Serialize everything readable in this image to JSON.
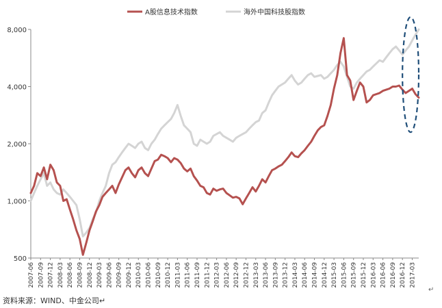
{
  "chart_data": {
    "type": "line",
    "title": "",
    "xlabel": "",
    "ylabel": "",
    "y_scale": "log",
    "ylim": [
      500,
      8000
    ],
    "yticks": [
      500,
      1000,
      2000,
      4000,
      8000
    ],
    "ytick_labels": [
      "500",
      "1,000",
      "2,000",
      "4,000",
      "8,000"
    ],
    "xlim": [
      "2007-06",
      "2017-05"
    ],
    "xtick_labels": [
      "2007-06",
      "2007-09",
      "2007-12",
      "2008-03",
      "2008-06",
      "2008-09",
      "2008-12",
      "2009-03",
      "2009-06",
      "2009-09",
      "2009-12",
      "2010-03",
      "2010-06",
      "2010-09",
      "2010-12",
      "2011-03",
      "2011-06",
      "2011-09",
      "2011-12",
      "2012-03",
      "2012-06",
      "2012-09",
      "2012-12",
      "2013-03",
      "2013-06",
      "2013-09",
      "2013-12",
      "2014-03",
      "2014-06",
      "2014-09",
      "2014-12",
      "2015-03",
      "2015-06",
      "2015-09",
      "2015-12",
      "2016-03",
      "2016-06",
      "2016-09",
      "2016-12",
      "2017-03"
    ],
    "grid": false,
    "legend_position": "top",
    "series": [
      {
        "name": "A股信息技术指数",
        "color": "#B5514F",
        "points": [
          [
            "2007-06",
            1100
          ],
          [
            "2007-07",
            1200
          ],
          [
            "2007-08",
            1400
          ],
          [
            "2007-09",
            1350
          ],
          [
            "2007-10",
            1500
          ],
          [
            "2007-11",
            1300
          ],
          [
            "2007-12",
            1550
          ],
          [
            "2008-01",
            1450
          ],
          [
            "2008-02",
            1250
          ],
          [
            "2008-03",
            1200
          ],
          [
            "2008-04",
            1000
          ],
          [
            "2008-05",
            1020
          ],
          [
            "2008-06",
            900
          ],
          [
            "2008-07",
            800
          ],
          [
            "2008-08",
            700
          ],
          [
            "2008-09",
            630
          ],
          [
            "2008-10",
            520
          ],
          [
            "2008-11",
            600
          ],
          [
            "2008-12",
            700
          ],
          [
            "2009-01",
            780
          ],
          [
            "2009-02",
            880
          ],
          [
            "2009-03",
            950
          ],
          [
            "2009-04",
            1050
          ],
          [
            "2009-05",
            1100
          ],
          [
            "2009-06",
            1150
          ],
          [
            "2009-07",
            1200
          ],
          [
            "2009-08",
            1100
          ],
          [
            "2009-09",
            1220
          ],
          [
            "2009-10",
            1330
          ],
          [
            "2009-11",
            1450
          ],
          [
            "2009-12",
            1500
          ],
          [
            "2010-01",
            1400
          ],
          [
            "2010-02",
            1330
          ],
          [
            "2010-03",
            1450
          ],
          [
            "2010-04",
            1500
          ],
          [
            "2010-05",
            1400
          ],
          [
            "2010-06",
            1350
          ],
          [
            "2010-07",
            1480
          ],
          [
            "2010-08",
            1620
          ],
          [
            "2010-09",
            1650
          ],
          [
            "2010-10",
            1750
          ],
          [
            "2010-11",
            1720
          ],
          [
            "2010-12",
            1680
          ],
          [
            "2011-01",
            1600
          ],
          [
            "2011-02",
            1680
          ],
          [
            "2011-03",
            1650
          ],
          [
            "2011-04",
            1580
          ],
          [
            "2011-05",
            1480
          ],
          [
            "2011-06",
            1430
          ],
          [
            "2011-07",
            1480
          ],
          [
            "2011-08",
            1350
          ],
          [
            "2011-09",
            1280
          ],
          [
            "2011-10",
            1200
          ],
          [
            "2011-11",
            1180
          ],
          [
            "2011-12",
            1100
          ],
          [
            "2012-01",
            1080
          ],
          [
            "2012-02",
            1160
          ],
          [
            "2012-03",
            1130
          ],
          [
            "2012-04",
            1150
          ],
          [
            "2012-05",
            1160
          ],
          [
            "2012-06",
            1100
          ],
          [
            "2012-07",
            1070
          ],
          [
            "2012-08",
            1040
          ],
          [
            "2012-09",
            1050
          ],
          [
            "2012-10",
            1030
          ],
          [
            "2012-11",
            960
          ],
          [
            "2012-12",
            1030
          ],
          [
            "2013-01",
            1100
          ],
          [
            "2013-02",
            1180
          ],
          [
            "2013-03",
            1120
          ],
          [
            "2013-04",
            1200
          ],
          [
            "2013-05",
            1300
          ],
          [
            "2013-06",
            1250
          ],
          [
            "2013-07",
            1350
          ],
          [
            "2013-08",
            1450
          ],
          [
            "2013-09",
            1480
          ],
          [
            "2013-10",
            1520
          ],
          [
            "2013-11",
            1550
          ],
          [
            "2013-12",
            1620
          ],
          [
            "2014-01",
            1700
          ],
          [
            "2014-02",
            1800
          ],
          [
            "2014-03",
            1720
          ],
          [
            "2014-04",
            1700
          ],
          [
            "2014-05",
            1780
          ],
          [
            "2014-06",
            1850
          ],
          [
            "2014-07",
            1950
          ],
          [
            "2014-08",
            2050
          ],
          [
            "2014-09",
            2200
          ],
          [
            "2014-10",
            2350
          ],
          [
            "2014-11",
            2450
          ],
          [
            "2014-12",
            2500
          ],
          [
            "2015-01",
            2800
          ],
          [
            "2015-02",
            3200
          ],
          [
            "2015-03",
            3900
          ],
          [
            "2015-04",
            4600
          ],
          [
            "2015-05",
            6000
          ],
          [
            "2015-06",
            7200
          ],
          [
            "2015-07",
            4600
          ],
          [
            "2015-08",
            4300
          ],
          [
            "2015-09",
            3400
          ],
          [
            "2015-10",
            3800
          ],
          [
            "2015-11",
            4200
          ],
          [
            "2015-12",
            4000
          ],
          [
            "2016-01",
            3300
          ],
          [
            "2016-02",
            3400
          ],
          [
            "2016-03",
            3600
          ],
          [
            "2016-04",
            3650
          ],
          [
            "2016-05",
            3700
          ],
          [
            "2016-06",
            3800
          ],
          [
            "2016-07",
            3850
          ],
          [
            "2016-08",
            3900
          ],
          [
            "2016-09",
            4000
          ],
          [
            "2016-10",
            4000
          ],
          [
            "2016-11",
            4050
          ],
          [
            "2016-12",
            3850
          ],
          [
            "2017-01",
            3700
          ],
          [
            "2017-02",
            3800
          ],
          [
            "2017-03",
            3900
          ],
          [
            "2017-04",
            3650
          ],
          [
            "2017-05",
            3500
          ]
        ]
      },
      {
        "name": "海外中国科技股指数",
        "color": "#D4D4D4",
        "points": [
          [
            "2007-06",
            1000
          ],
          [
            "2007-07",
            1100
          ],
          [
            "2007-08",
            1200
          ],
          [
            "2007-09",
            1300
          ],
          [
            "2007-10",
            1400
          ],
          [
            "2007-11",
            1200
          ],
          [
            "2007-12",
            1250
          ],
          [
            "2008-01",
            1150
          ],
          [
            "2008-02",
            1100
          ],
          [
            "2008-03",
            1080
          ],
          [
            "2008-04",
            1150
          ],
          [
            "2008-05",
            1100
          ],
          [
            "2008-06",
            1050
          ],
          [
            "2008-07",
            1000
          ],
          [
            "2008-08",
            950
          ],
          [
            "2008-09",
            800
          ],
          [
            "2008-10",
            650
          ],
          [
            "2008-11",
            680
          ],
          [
            "2008-12",
            720
          ],
          [
            "2009-01",
            800
          ],
          [
            "2009-02",
            870
          ],
          [
            "2009-03",
            1000
          ],
          [
            "2009-04",
            1100
          ],
          [
            "2009-05",
            1200
          ],
          [
            "2009-06",
            1400
          ],
          [
            "2009-07",
            1550
          ],
          [
            "2009-08",
            1600
          ],
          [
            "2009-09",
            1700
          ],
          [
            "2009-10",
            1800
          ],
          [
            "2009-11",
            1900
          ],
          [
            "2009-12",
            2000
          ],
          [
            "2010-01",
            1950
          ],
          [
            "2010-02",
            1900
          ],
          [
            "2010-03",
            2000
          ],
          [
            "2010-04",
            2050
          ],
          [
            "2010-05",
            1900
          ],
          [
            "2010-06",
            1850
          ],
          [
            "2010-07",
            2000
          ],
          [
            "2010-08",
            2100
          ],
          [
            "2010-09",
            2250
          ],
          [
            "2010-10",
            2400
          ],
          [
            "2010-11",
            2500
          ],
          [
            "2010-12",
            2600
          ],
          [
            "2011-01",
            2700
          ],
          [
            "2011-02",
            2900
          ],
          [
            "2011-03",
            3200
          ],
          [
            "2011-04",
            2800
          ],
          [
            "2011-05",
            2500
          ],
          [
            "2011-06",
            2400
          ],
          [
            "2011-07",
            2300
          ],
          [
            "2011-08",
            2000
          ],
          [
            "2011-09",
            1950
          ],
          [
            "2011-10",
            2100
          ],
          [
            "2011-11",
            2050
          ],
          [
            "2011-12",
            2000
          ],
          [
            "2012-01",
            2050
          ],
          [
            "2012-02",
            2200
          ],
          [
            "2012-03",
            2250
          ],
          [
            "2012-04",
            2300
          ],
          [
            "2012-05",
            2200
          ],
          [
            "2012-06",
            2150
          ],
          [
            "2012-07",
            2100
          ],
          [
            "2012-08",
            2050
          ],
          [
            "2012-09",
            2150
          ],
          [
            "2012-10",
            2200
          ],
          [
            "2012-11",
            2250
          ],
          [
            "2012-12",
            2300
          ],
          [
            "2013-01",
            2400
          ],
          [
            "2013-02",
            2500
          ],
          [
            "2013-03",
            2600
          ],
          [
            "2013-04",
            2650
          ],
          [
            "2013-05",
            2900
          ],
          [
            "2013-06",
            3000
          ],
          [
            "2013-07",
            3300
          ],
          [
            "2013-08",
            3600
          ],
          [
            "2013-09",
            3800
          ],
          [
            "2013-10",
            4000
          ],
          [
            "2013-11",
            4100
          ],
          [
            "2013-12",
            4200
          ],
          [
            "2014-01",
            4400
          ],
          [
            "2014-02",
            4600
          ],
          [
            "2014-03",
            4300
          ],
          [
            "2014-04",
            4100
          ],
          [
            "2014-05",
            4200
          ],
          [
            "2014-06",
            4400
          ],
          [
            "2014-07",
            4600
          ],
          [
            "2014-08",
            4700
          ],
          [
            "2014-09",
            4500
          ],
          [
            "2014-10",
            4550
          ],
          [
            "2014-11",
            4600
          ],
          [
            "2014-12",
            4400
          ],
          [
            "2015-01",
            4500
          ],
          [
            "2015-02",
            4700
          ],
          [
            "2015-03",
            4900
          ],
          [
            "2015-04",
            5200
          ],
          [
            "2015-05",
            5400
          ],
          [
            "2015-06",
            5100
          ],
          [
            "2015-07",
            4500
          ],
          [
            "2015-08",
            4000
          ],
          [
            "2015-09",
            3900
          ],
          [
            "2015-10",
            4200
          ],
          [
            "2015-11",
            4400
          ],
          [
            "2015-12",
            4600
          ],
          [
            "2016-01",
            4800
          ],
          [
            "2016-02",
            4900
          ],
          [
            "2016-03",
            5100
          ],
          [
            "2016-04",
            5300
          ],
          [
            "2016-05",
            5500
          ],
          [
            "2016-06",
            5400
          ],
          [
            "2016-07",
            5700
          ],
          [
            "2016-08",
            6000
          ],
          [
            "2016-09",
            6300
          ],
          [
            "2016-10",
            6500
          ],
          [
            "2016-11",
            6200
          ],
          [
            "2016-12",
            5900
          ],
          [
            "2017-01",
            6200
          ],
          [
            "2017-02",
            6500
          ],
          [
            "2017-03",
            7000
          ],
          [
            "2017-04",
            7500
          ],
          [
            "2017-05",
            8000
          ]
        ]
      }
    ],
    "annotations": [
      {
        "type": "dashed-ellipse",
        "color": "#1F4E79",
        "x_range": [
          "2016-12",
          "2017-05"
        ],
        "y_range": [
          2300,
          9300
        ]
      }
    ]
  },
  "source_text": "资料来源：WIND、中金公司",
  "return_mark": "↵"
}
